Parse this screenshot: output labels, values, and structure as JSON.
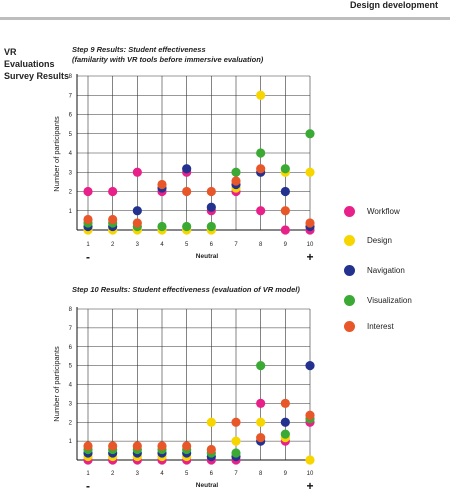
{
  "header": {
    "title": "Design development"
  },
  "section": {
    "title_lines": [
      "VR",
      "Evaluations",
      "Survey Results"
    ]
  },
  "legend": [
    {
      "name": "Workflow",
      "color": "#e8208a"
    },
    {
      "name": "Design",
      "color": "#f7d600"
    },
    {
      "name": "Navigation",
      "color": "#23318f"
    },
    {
      "name": "Visualization",
      "color": "#3aaa35"
    },
    {
      "name": "Interest",
      "color": "#e8572a"
    }
  ],
  "chart_data": [
    {
      "type": "scatter",
      "title_lines": [
        "Step 9 Results: Student effectiveness",
        "(familarity with VR tools before immersive evaluation)"
      ],
      "ylabel": "Number of participants",
      "xlabel": "Neutral",
      "x_min_label": "-",
      "x_max_label": "+",
      "xticks": [
        1,
        2,
        3,
        4,
        5,
        6,
        7,
        8,
        9,
        10
      ],
      "ylim": [
        0,
        8
      ],
      "yticks": [
        1,
        2,
        3,
        4,
        5,
        6,
        7,
        8
      ],
      "series": [
        {
          "name": "Workflow",
          "values": [
            2,
            2,
            3,
            2,
            3,
            1,
            2,
            1,
            0,
            0
          ]
        },
        {
          "name": "Design",
          "values": [
            0,
            0,
            0,
            0,
            0,
            0,
            2,
            7,
            3,
            3
          ]
        },
        {
          "name": "Navigation",
          "values": [
            0,
            0,
            1,
            2,
            3,
            1,
            2,
            3,
            2,
            0
          ]
        },
        {
          "name": "Visualization",
          "values": [
            0,
            0,
            0,
            0,
            0,
            0,
            3,
            4,
            3,
            5
          ]
        },
        {
          "name": "Interest",
          "values": [
            0,
            0,
            0,
            2,
            2,
            2,
            2,
            3,
            1,
            0
          ]
        }
      ]
    },
    {
      "type": "scatter",
      "title_lines": [
        "Step 10 Results: Student effectiveness (evaluation of VR model)"
      ],
      "ylabel": "Number of participants",
      "xlabel": "Neutral",
      "x_min_label": "-",
      "x_max_label": "+",
      "xticks": [
        1,
        2,
        3,
        4,
        5,
        6,
        7,
        8,
        9,
        10
      ],
      "ylim": [
        0,
        8
      ],
      "yticks": [
        1,
        2,
        3,
        4,
        5,
        6,
        7,
        8
      ],
      "series": [
        {
          "name": "Workflow",
          "values": [
            0,
            0,
            0,
            0,
            0,
            0,
            0,
            3,
            1,
            2
          ]
        },
        {
          "name": "Design",
          "values": [
            0,
            0,
            0,
            0,
            0,
            2,
            1,
            2,
            1,
            0
          ]
        },
        {
          "name": "Navigation",
          "values": [
            0,
            0,
            0,
            0,
            0,
            0,
            0,
            1,
            2,
            5
          ]
        },
        {
          "name": "Visualization",
          "values": [
            0,
            0,
            0,
            0,
            0,
            0,
            0,
            5,
            1,
            2
          ]
        },
        {
          "name": "Interest",
          "values": [
            0,
            0,
            0,
            0,
            0,
            0,
            2,
            1,
            3,
            2
          ]
        }
      ]
    }
  ]
}
